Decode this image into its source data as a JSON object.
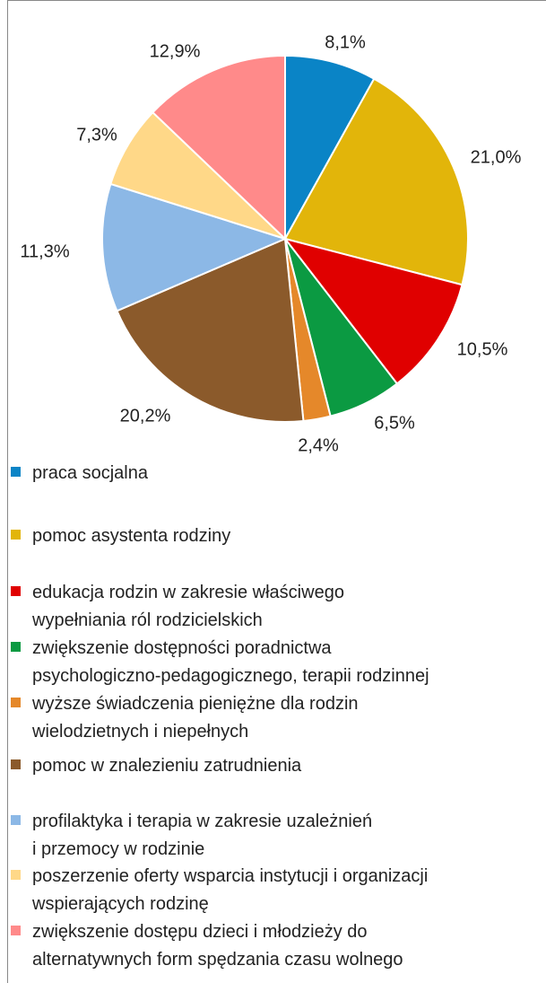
{
  "chart_data": {
    "type": "pie",
    "categories": [
      "praca socjalna",
      "pomoc asystenta rodziny",
      "edukacja rodzin w zakresie właściwego\nwypełniania ról rodzicielskich",
      "zwiększenie dostępności poradnictwa\npsychologiczno-pedagogicznego, terapii rodzinnej",
      "wyższe świadczenia pieniężne dla rodzin\nwielodzietnych i niepełnych",
      "pomoc w znalezieniu zatrudnienia",
      "profilaktyka i terapia w zakresie uzależnień\ni przemocy w rodzinie",
      "poszerzenie oferty wsparcia instytucji i organizacji\nwspierających rodzinę",
      "zwiększenie dostępu dzieci i młodzieży do\nalternatywnych form spędzania czasu wolnego"
    ],
    "values": [
      8.1,
      21.0,
      10.5,
      6.5,
      2.4,
      20.2,
      11.3,
      7.3,
      12.9
    ],
    "value_labels": [
      "8,1%",
      "21,0%",
      "10,5%",
      "6,5%",
      "2,4%",
      "20,2%",
      "11,3%",
      "7,3%",
      "12,9%"
    ],
    "colors": [
      "#0a84c6",
      "#e2b50a",
      "#e00000",
      "#0b9a42",
      "#e5882a",
      "#8b5a2b",
      "#8cb8e6",
      "#ffd888",
      "#ff8a8a"
    ]
  }
}
